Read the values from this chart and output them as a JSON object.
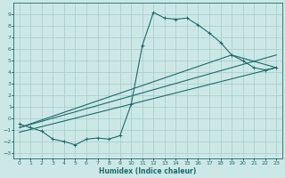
{
  "xlabel": "Humidex (Indice chaleur)",
  "bg_color": "#cce8e6",
  "grid_color": "#aad0ce",
  "line_color": "#1a6b6b",
  "xlim": [
    -0.5,
    23.5
  ],
  "ylim": [
    -3.5,
    10
  ],
  "xticks": [
    0,
    1,
    2,
    3,
    4,
    5,
    6,
    7,
    8,
    9,
    10,
    11,
    12,
    13,
    14,
    15,
    16,
    17,
    18,
    19,
    20,
    21,
    22,
    23
  ],
  "yticks": [
    -3,
    -2,
    -1,
    0,
    1,
    2,
    3,
    4,
    5,
    6,
    7,
    8,
    9
  ],
  "line1_x": [
    0,
    1,
    2,
    3,
    4,
    5,
    6,
    7,
    8,
    9,
    10,
    11,
    12,
    13,
    14,
    15,
    16,
    17,
    18,
    19,
    20,
    21,
    22,
    23
  ],
  "line1_y": [
    -0.5,
    -0.8,
    -1.1,
    -1.8,
    -2.0,
    -2.3,
    -1.8,
    -1.7,
    -1.8,
    -1.5,
    1.2,
    6.3,
    9.2,
    8.7,
    8.6,
    8.7,
    8.1,
    7.4,
    6.6,
    5.5,
    5.0,
    4.4,
    4.2,
    4.4
  ],
  "line2_x": [
    0,
    23
  ],
  "line2_y": [
    -0.8,
    5.5
  ],
  "line3_x": [
    0,
    19,
    23
  ],
  "line3_y": [
    -0.8,
    5.5,
    4.4
  ],
  "line4_x": [
    0,
    23
  ],
  "line4_y": [
    -1.2,
    4.4
  ]
}
